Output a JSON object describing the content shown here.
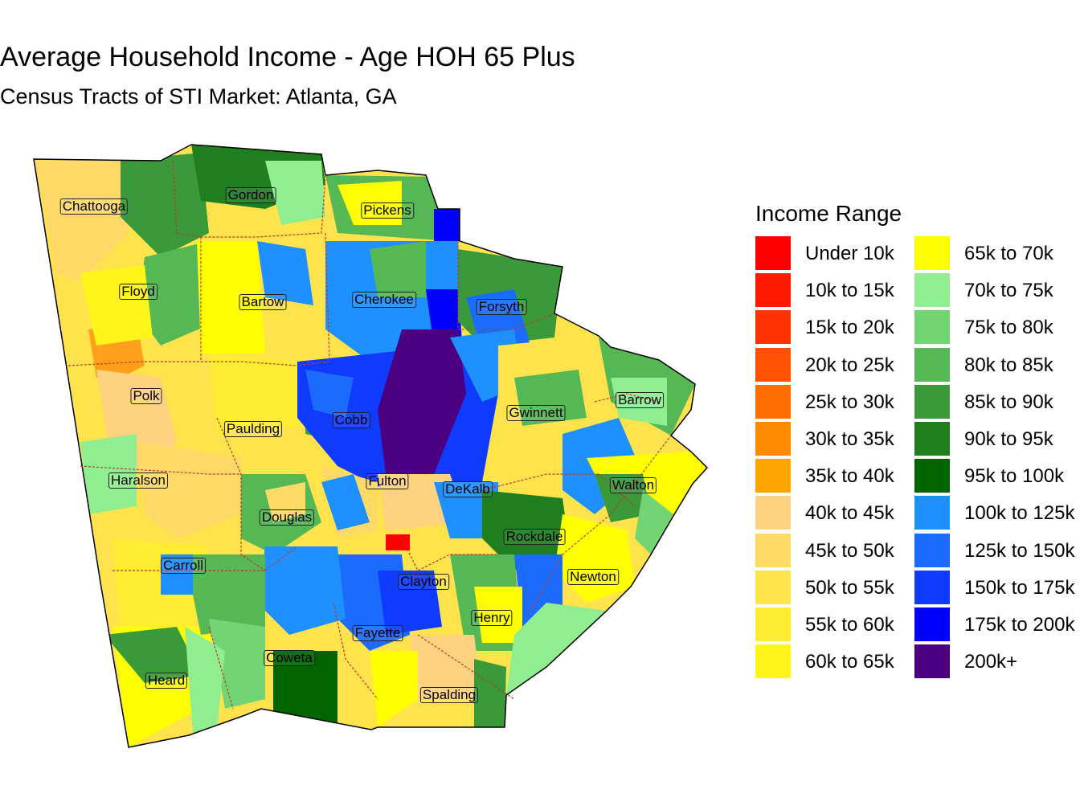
{
  "header": {
    "title": "Average Household Income - Age HOH 65 Plus",
    "subtitle": "Census Tracts of STI Market: Atlanta, GA"
  },
  "legend": {
    "title": "Income Range",
    "items": [
      {
        "label": "Under 10k",
        "color": "#FF0000"
      },
      {
        "label": "10k to 15k",
        "color": "#FF1A00"
      },
      {
        "label": "15k to 20k",
        "color": "#FF3300"
      },
      {
        "label": "20k to 25k",
        "color": "#FF5200"
      },
      {
        "label": "25k to 30k",
        "color": "#FF6E00"
      },
      {
        "label": "30k to 35k",
        "color": "#FF8A00"
      },
      {
        "label": "35k to 40k",
        "color": "#FFA500"
      },
      {
        "label": "40k to 45k",
        "color": "#FFD27F"
      },
      {
        "label": "45k to 50k",
        "color": "#FFD966"
      },
      {
        "label": "50k to 55k",
        "color": "#FFE34D"
      },
      {
        "label": "55k to 60k",
        "color": "#FFEC33"
      },
      {
        "label": "60k to 65k",
        "color": "#FFF51A"
      },
      {
        "label": "65k to 70k",
        "color": "#FFFF00"
      },
      {
        "label": "70k to 75k",
        "color": "#90EE90"
      },
      {
        "label": "75k to 80k",
        "color": "#72D472"
      },
      {
        "label": "80k to 85k",
        "color": "#55B855"
      },
      {
        "label": "85k to 90k",
        "color": "#3A9A3A"
      },
      {
        "label": "90k to 95k",
        "color": "#1F7F1F"
      },
      {
        "label": "95k to 100k",
        "color": "#006400"
      },
      {
        "label": "100k to 125k",
        "color": "#1E90FF"
      },
      {
        "label": "125k to 150k",
        "color": "#1C6BFF"
      },
      {
        "label": "150k to 175k",
        "color": "#0F3BFF"
      },
      {
        "label": "175k to 200k",
        "color": "#0000FF"
      },
      {
        "label": "200k+",
        "color": "#4B0082"
      }
    ]
  },
  "counties": [
    {
      "name": "Chattooga"
    },
    {
      "name": "Gordon"
    },
    {
      "name": "Pickens"
    },
    {
      "name": "Floyd"
    },
    {
      "name": "Bartow"
    },
    {
      "name": "Cherokee"
    },
    {
      "name": "Forsyth"
    },
    {
      "name": "Polk"
    },
    {
      "name": "Paulding"
    },
    {
      "name": "Cobb"
    },
    {
      "name": "Gwinnett"
    },
    {
      "name": "Barrow"
    },
    {
      "name": "Haralson"
    },
    {
      "name": "Fulton"
    },
    {
      "name": "DeKalb"
    },
    {
      "name": "Walton"
    },
    {
      "name": "Douglas"
    },
    {
      "name": "Rockdale"
    },
    {
      "name": "Carroll"
    },
    {
      "name": "Clayton"
    },
    {
      "name": "Newton"
    },
    {
      "name": "Henry"
    },
    {
      "name": "Fayette"
    },
    {
      "name": "Coweta"
    },
    {
      "name": "Heard"
    },
    {
      "name": "Spalding"
    }
  ]
}
